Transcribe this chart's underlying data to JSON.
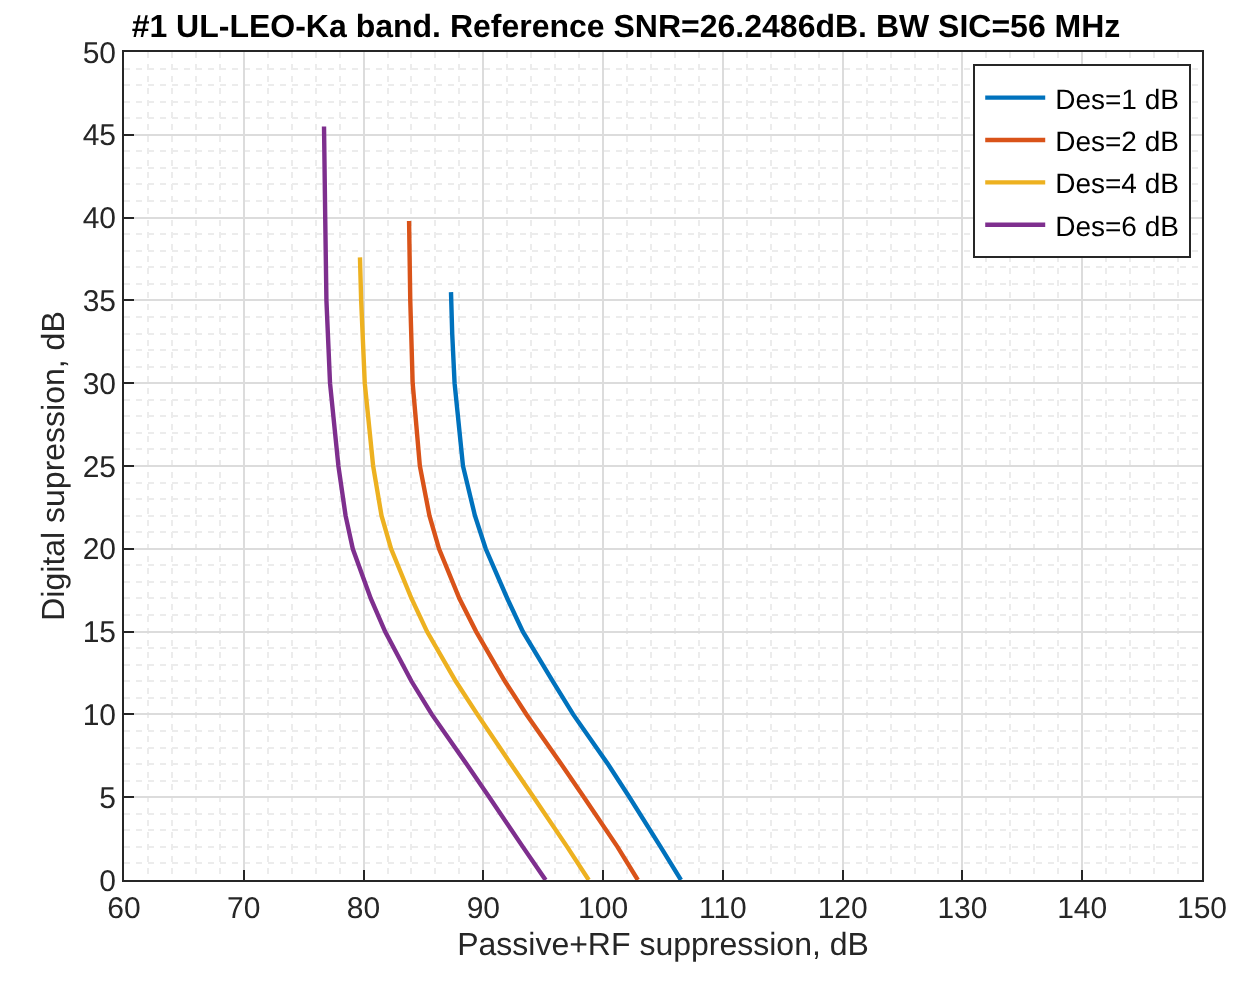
{
  "chart_data": {
    "type": "line",
    "title": "#1 UL-LEO-Ka band. Reference SNR=26.2486dB. BW SIC=56 MHz",
    "xlabel": "Passive+RF suppression, dB",
    "ylabel": "Digital supression, dB",
    "xlim": [
      60,
      150
    ],
    "xticks": [
      60,
      70,
      80,
      90,
      100,
      110,
      120,
      130,
      140,
      150
    ],
    "ylim": [
      0,
      50
    ],
    "yticks": [
      0,
      5,
      10,
      15,
      20,
      25,
      30,
      35,
      40,
      45,
      50
    ],
    "grid": true,
    "legend": "top right",
    "marker": "none",
    "line_style": "solid",
    "series": [
      {
        "name": "Des=1 dB",
        "color": "#0072bd",
        "x": [
          87.3,
          87.4,
          87.6,
          88.3,
          89.3,
          90.2,
          92,
          93.3,
          95.8,
          97.5,
          100.4,
          102.2,
          104.8,
          106.5
        ],
        "values": [
          35.5,
          33,
          30,
          25,
          22,
          20,
          17,
          15,
          12,
          10,
          7,
          5,
          2,
          0
        ]
      },
      {
        "name": "Des=2 dB",
        "color": "#d95319",
        "x": [
          83.8,
          83.9,
          84.1,
          84.7,
          85.5,
          86.3,
          88,
          89.4,
          91.8,
          93.6,
          96.5,
          98.4,
          101.2,
          102.9
        ],
        "values": [
          39.8,
          35,
          30,
          25,
          22,
          20,
          17,
          15,
          12,
          10,
          7,
          5,
          2,
          0
        ]
      },
      {
        "name": "Des=4 dB",
        "color": "#edb120",
        "x": [
          79.7,
          79.8,
          80.1,
          80.8,
          81.5,
          82.3,
          84,
          85.3,
          87.7,
          89.5,
          92.3,
          94.2,
          97,
          98.8
        ],
        "values": [
          37.6,
          35,
          30,
          25,
          22,
          20,
          17,
          15,
          12,
          10,
          7,
          5,
          2,
          0
        ]
      },
      {
        "name": "Des=6 dB",
        "color": "#7e2f8e",
        "x": [
          76.7,
          76.8,
          76.9,
          77.2,
          77.9,
          78.5,
          79.1,
          80.6,
          81.8,
          84,
          85.7,
          88.6,
          90.5,
          93.3,
          95.2
        ],
        "values": [
          45.5,
          40,
          35,
          30,
          25,
          22,
          20,
          17,
          15,
          12,
          10,
          7,
          5,
          2,
          0
        ]
      }
    ]
  }
}
